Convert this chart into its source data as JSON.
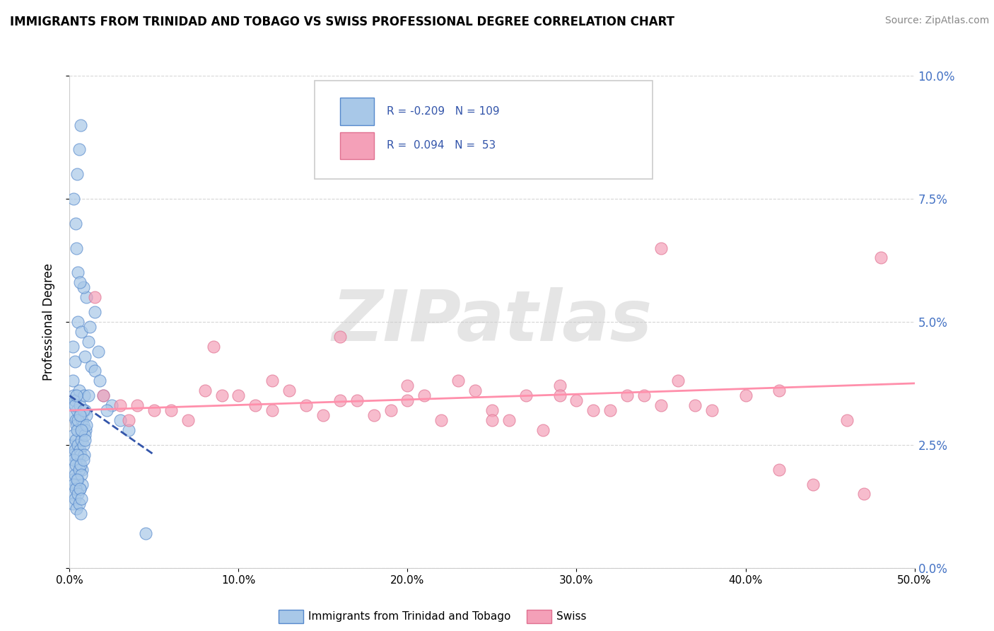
{
  "title": "IMMIGRANTS FROM TRINIDAD AND TOBAGO VS SWISS PROFESSIONAL DEGREE CORRELATION CHART",
  "source": "Source: ZipAtlas.com",
  "xlabel_legend": "Immigrants from Trinidad and Tobago",
  "ylabel": "Professional Degree",
  "xlim": [
    0.0,
    50.0
  ],
  "ylim": [
    0.0,
    10.0
  ],
  "xticks": [
    0.0,
    10.0,
    20.0,
    30.0,
    40.0,
    50.0
  ],
  "yticks": [
    0.0,
    2.5,
    5.0,
    7.5,
    10.0
  ],
  "color_blue": "#A8C8E8",
  "color_pink": "#F4A0B8",
  "color_blue_edge": "#5588CC",
  "color_pink_edge": "#E07090",
  "color_blue_line": "#3355AA",
  "color_pink_line": "#FF8FAB",
  "watermark": "ZIPatlas",
  "blue_points_x": [
    0.15,
    0.2,
    0.25,
    0.3,
    0.35,
    0.4,
    0.45,
    0.5,
    0.55,
    0.6,
    0.65,
    0.7,
    0.75,
    0.8,
    0.85,
    0.9,
    0.95,
    1.0,
    0.15,
    0.2,
    0.25,
    0.3,
    0.35,
    0.4,
    0.45,
    0.5,
    0.55,
    0.6,
    0.65,
    0.7,
    0.75,
    0.8,
    0.85,
    0.9,
    0.15,
    0.2,
    0.25,
    0.3,
    0.35,
    0.4,
    0.45,
    0.5,
    0.55,
    0.6,
    0.65,
    0.7,
    0.75,
    0.8,
    0.15,
    0.2,
    0.25,
    0.3,
    0.35,
    0.4,
    0.45,
    0.5,
    0.55,
    0.6,
    0.65,
    0.7,
    0.2,
    0.3,
    0.5,
    0.7,
    0.9,
    1.1,
    1.3,
    1.5,
    1.8,
    2.0,
    2.5,
    3.0,
    3.5,
    4.5,
    1.0,
    1.5,
    1.2,
    0.8,
    2.2,
    1.7,
    0.5,
    0.6,
    0.4,
    0.35,
    0.25,
    0.45,
    0.55,
    0.65,
    0.3,
    0.5,
    0.8,
    1.1,
    0.2,
    0.4,
    0.6,
    1.0,
    0.7,
    0.9
  ],
  "blue_points_y": [
    3.3,
    3.1,
    3.5,
    3.4,
    3.0,
    2.9,
    3.2,
    2.8,
    3.6,
    3.3,
    3.1,
    2.7,
    3.0,
    2.9,
    3.5,
    3.2,
    2.8,
    3.1,
    2.5,
    2.3,
    2.7,
    2.4,
    2.6,
    2.2,
    2.8,
    2.5,
    2.1,
    2.4,
    2.3,
    2.6,
    2.0,
    2.5,
    2.3,
    2.7,
    2.0,
    1.8,
    2.2,
    1.9,
    2.1,
    1.7,
    2.3,
    1.8,
    2.0,
    1.6,
    2.1,
    1.9,
    1.7,
    2.2,
    1.5,
    1.3,
    1.7,
    1.4,
    1.6,
    1.2,
    1.8,
    1.5,
    1.3,
    1.6,
    1.1,
    1.4,
    4.5,
    4.2,
    5.0,
    4.8,
    4.3,
    4.6,
    4.1,
    4.0,
    3.8,
    3.5,
    3.3,
    3.0,
    2.8,
    0.7,
    5.5,
    5.2,
    4.9,
    5.7,
    3.2,
    4.4,
    6.0,
    5.8,
    6.5,
    7.0,
    7.5,
    8.0,
    8.5,
    9.0,
    3.3,
    3.0,
    3.2,
    3.5,
    3.8,
    3.5,
    3.1,
    2.9,
    2.8,
    2.6
  ],
  "pink_points_x": [
    1.5,
    3.0,
    5.0,
    7.0,
    8.5,
    10.0,
    12.0,
    14.0,
    16.0,
    18.0,
    20.0,
    22.0,
    24.0,
    25.0,
    27.0,
    29.0,
    30.0,
    32.0,
    34.0,
    36.0,
    38.0,
    40.0,
    42.0,
    44.0,
    46.0,
    3.5,
    6.0,
    9.0,
    11.0,
    13.0,
    15.0,
    17.0,
    19.0,
    21.0,
    23.0,
    26.0,
    28.0,
    31.0,
    33.0,
    35.0,
    37.0,
    2.0,
    4.0,
    8.0,
    12.0,
    16.0,
    20.0,
    25.0,
    29.0,
    35.0,
    42.0,
    47.0,
    48.0
  ],
  "pink_points_y": [
    5.5,
    3.3,
    3.2,
    3.0,
    4.5,
    3.5,
    3.8,
    3.3,
    4.7,
    3.1,
    3.4,
    3.0,
    3.6,
    3.2,
    3.5,
    3.7,
    3.4,
    3.2,
    3.5,
    3.8,
    3.2,
    3.5,
    3.6,
    1.7,
    3.0,
    3.0,
    3.2,
    3.5,
    3.3,
    3.6,
    3.1,
    3.4,
    3.2,
    3.5,
    3.8,
    3.0,
    2.8,
    3.2,
    3.5,
    6.5,
    3.3,
    3.5,
    3.3,
    3.6,
    3.2,
    3.4,
    3.7,
    3.0,
    3.5,
    3.3,
    2.0,
    1.5,
    6.3
  ],
  "blue_trend_x": [
    0.0,
    5.0
  ],
  "blue_trend_y": [
    3.5,
    2.3
  ],
  "pink_trend_x": [
    0.0,
    50.0
  ],
  "pink_trend_y": [
    3.2,
    3.75
  ]
}
